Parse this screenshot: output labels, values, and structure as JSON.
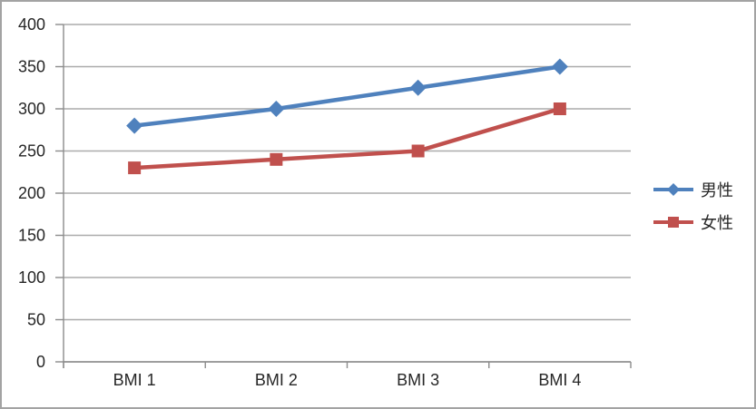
{
  "chart_data": {
    "type": "line",
    "title": "",
    "xlabel": "",
    "ylabel": "",
    "categories": [
      "BMI 1",
      "BMI 2",
      "BMI 3",
      "BMI 4"
    ],
    "series": [
      {
        "name": "男性",
        "values": [
          280,
          300,
          325,
          350
        ],
        "color": "#4F81BD",
        "marker": "diamond"
      },
      {
        "name": "女性",
        "values": [
          230,
          240,
          250,
          300
        ],
        "color": "#C0504D",
        "marker": "square"
      }
    ],
    "ylim": [
      0,
      400
    ],
    "yticks": [
      400,
      350,
      300,
      250,
      200,
      150,
      100,
      50,
      0
    ],
    "ytick_labels": [
      "400",
      "350",
      "300",
      "250",
      "200",
      "150",
      "100",
      "50",
      "0"
    ],
    "grid": "horizontal",
    "legend_position": "right",
    "colors": {
      "gridline": "#ABABAB",
      "axis": "#8C8C8C",
      "text": "#262626",
      "frame_border": "#A3A3A3",
      "background": "#FFFFFF"
    }
  }
}
